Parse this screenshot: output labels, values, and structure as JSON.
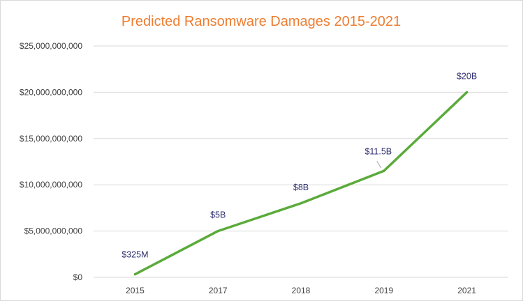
{
  "chart_data": {
    "type": "line",
    "title": "Predicted Ransomware Damages 2015-2021",
    "xlabel": "",
    "ylabel": "",
    "categories": [
      "2015",
      "2017",
      "2018",
      "2019",
      "2021"
    ],
    "series": [
      {
        "name": "Predicted Ransomware Damages",
        "values": [
          325000000,
          5000000000,
          8000000000,
          11500000000,
          20000000000
        ],
        "data_labels": [
          "$325M",
          "$5B",
          "$8B",
          "$11.5B",
          "$20B"
        ]
      }
    ],
    "ylim": [
      0,
      25000000000
    ],
    "y_ticks": [
      0,
      5000000000,
      10000000000,
      15000000000,
      20000000000,
      25000000000
    ],
    "y_tick_labels": [
      "$0",
      "$5,000,000,000",
      "$10,000,000,000",
      "$15,000,000,000",
      "$20,000,000,000",
      "$25,000,000,000"
    ],
    "grid": true,
    "legend": "none",
    "colors": {
      "title": "#ed7d31",
      "line": "#5aab3a",
      "gridline": "#d9d9d9",
      "data_label": "#2f2f6f",
      "tick": "#404040"
    }
  }
}
